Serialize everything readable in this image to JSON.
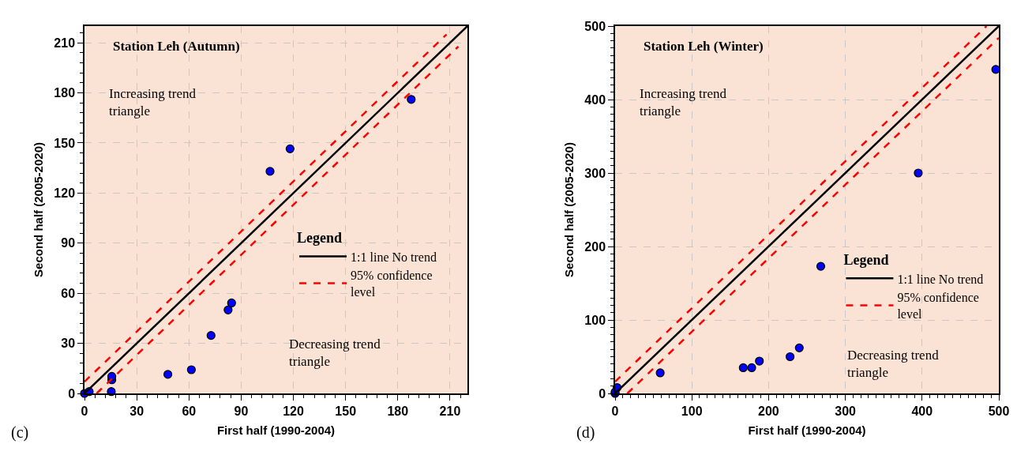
{
  "chart_data": [
    {
      "type": "scatter",
      "title": "Station Leh (Autumn)",
      "xlabel": "First half (1990-2004)",
      "ylabel": "Second half (2005-2020)",
      "legend_title": "Legend",
      "legend": "bottom right",
      "grid": true,
      "marker": "circle",
      "xlim": [
        0,
        220
      ],
      "ylim": [
        0,
        220
      ],
      "xticks": [
        0,
        30,
        60,
        90,
        120,
        150,
        180,
        210
      ],
      "yticks": [
        0,
        30,
        60,
        90,
        120,
        150,
        180,
        210
      ],
      "annotations": [
        "Increasing trend triangle",
        "Decreasing trend triangle",
        "(c)"
      ],
      "series": [
        {
          "color": "#0000ff",
          "x": [
            0,
            2.7,
            15.4,
            15.7,
            15.7,
            47.9,
            61.4,
            72.7,
            82.5,
            84.5,
            106.6,
            118.1,
            187.7
          ],
          "values": [
            0,
            1.1,
            1.1,
            8.2,
            10.2,
            11.4,
            14.2,
            34.7,
            50,
            54.2,
            133,
            146.5,
            176.1
          ]
        },
        {
          "type": "line",
          "name": "1:1 line No trend",
          "color": "#000000",
          "line_style": "solid",
          "marker": "none",
          "x": [
            0,
            220
          ],
          "values": [
            0,
            220
          ]
        },
        {
          "type": "line",
          "name": "95% confidence level",
          "color": "#ff0000",
          "line_style": "dashed",
          "marker": "none",
          "x": [
            0,
            208
          ],
          "values": [
            7,
            215
          ]
        },
        {
          "type": "line",
          "name": "95% confidence level",
          "color": "#ff0000",
          "line_style": "dashed",
          "marker": "none",
          "x": [
            7,
            214.8
          ],
          "values": [
            0,
            207.8
          ]
        }
      ]
    },
    {
      "type": "scatter",
      "title": "Station Leh (Winter)",
      "xlabel": "First half (1990-2004)",
      "ylabel": "Second half (2005-2020)",
      "legend_title": "Legend",
      "legend": "bottom right",
      "grid": true,
      "marker": "circle",
      "xlim": [
        0,
        500
      ],
      "ylim": [
        0,
        500
      ],
      "xticks": [
        0,
        100,
        200,
        300,
        400,
        500
      ],
      "yticks": [
        0,
        100,
        200,
        300,
        400,
        500
      ],
      "annotations": [
        "Increasing trend triangle",
        "Decreasing trend triangle",
        "(d)"
      ],
      "series": [
        {
          "color": "#0000ff",
          "x": [
            0,
            0,
            2.6,
            58.8,
            167,
            178,
            188,
            228,
            240,
            268,
            395,
            496
          ],
          "values": [
            0,
            2,
            8,
            28,
            35,
            35,
            44,
            50,
            62,
            173,
            300,
            441
          ]
        },
        {
          "type": "line",
          "name": "1:1 line No trend",
          "color": "#000000",
          "line_style": "solid",
          "marker": "none",
          "x": [
            0,
            500
          ],
          "values": [
            0,
            500
          ]
        },
        {
          "type": "line",
          "name": "95% confidence level",
          "color": "#ff0000",
          "line_style": "dashed",
          "marker": "none",
          "x": [
            0,
            484
          ],
          "values": [
            16,
            500
          ]
        },
        {
          "type": "line",
          "name": "95% confidence level",
          "color": "#ff0000",
          "line_style": "dashed",
          "marker": "none",
          "x": [
            16,
            500
          ],
          "values": [
            0,
            484
          ]
        }
      ]
    }
  ]
}
